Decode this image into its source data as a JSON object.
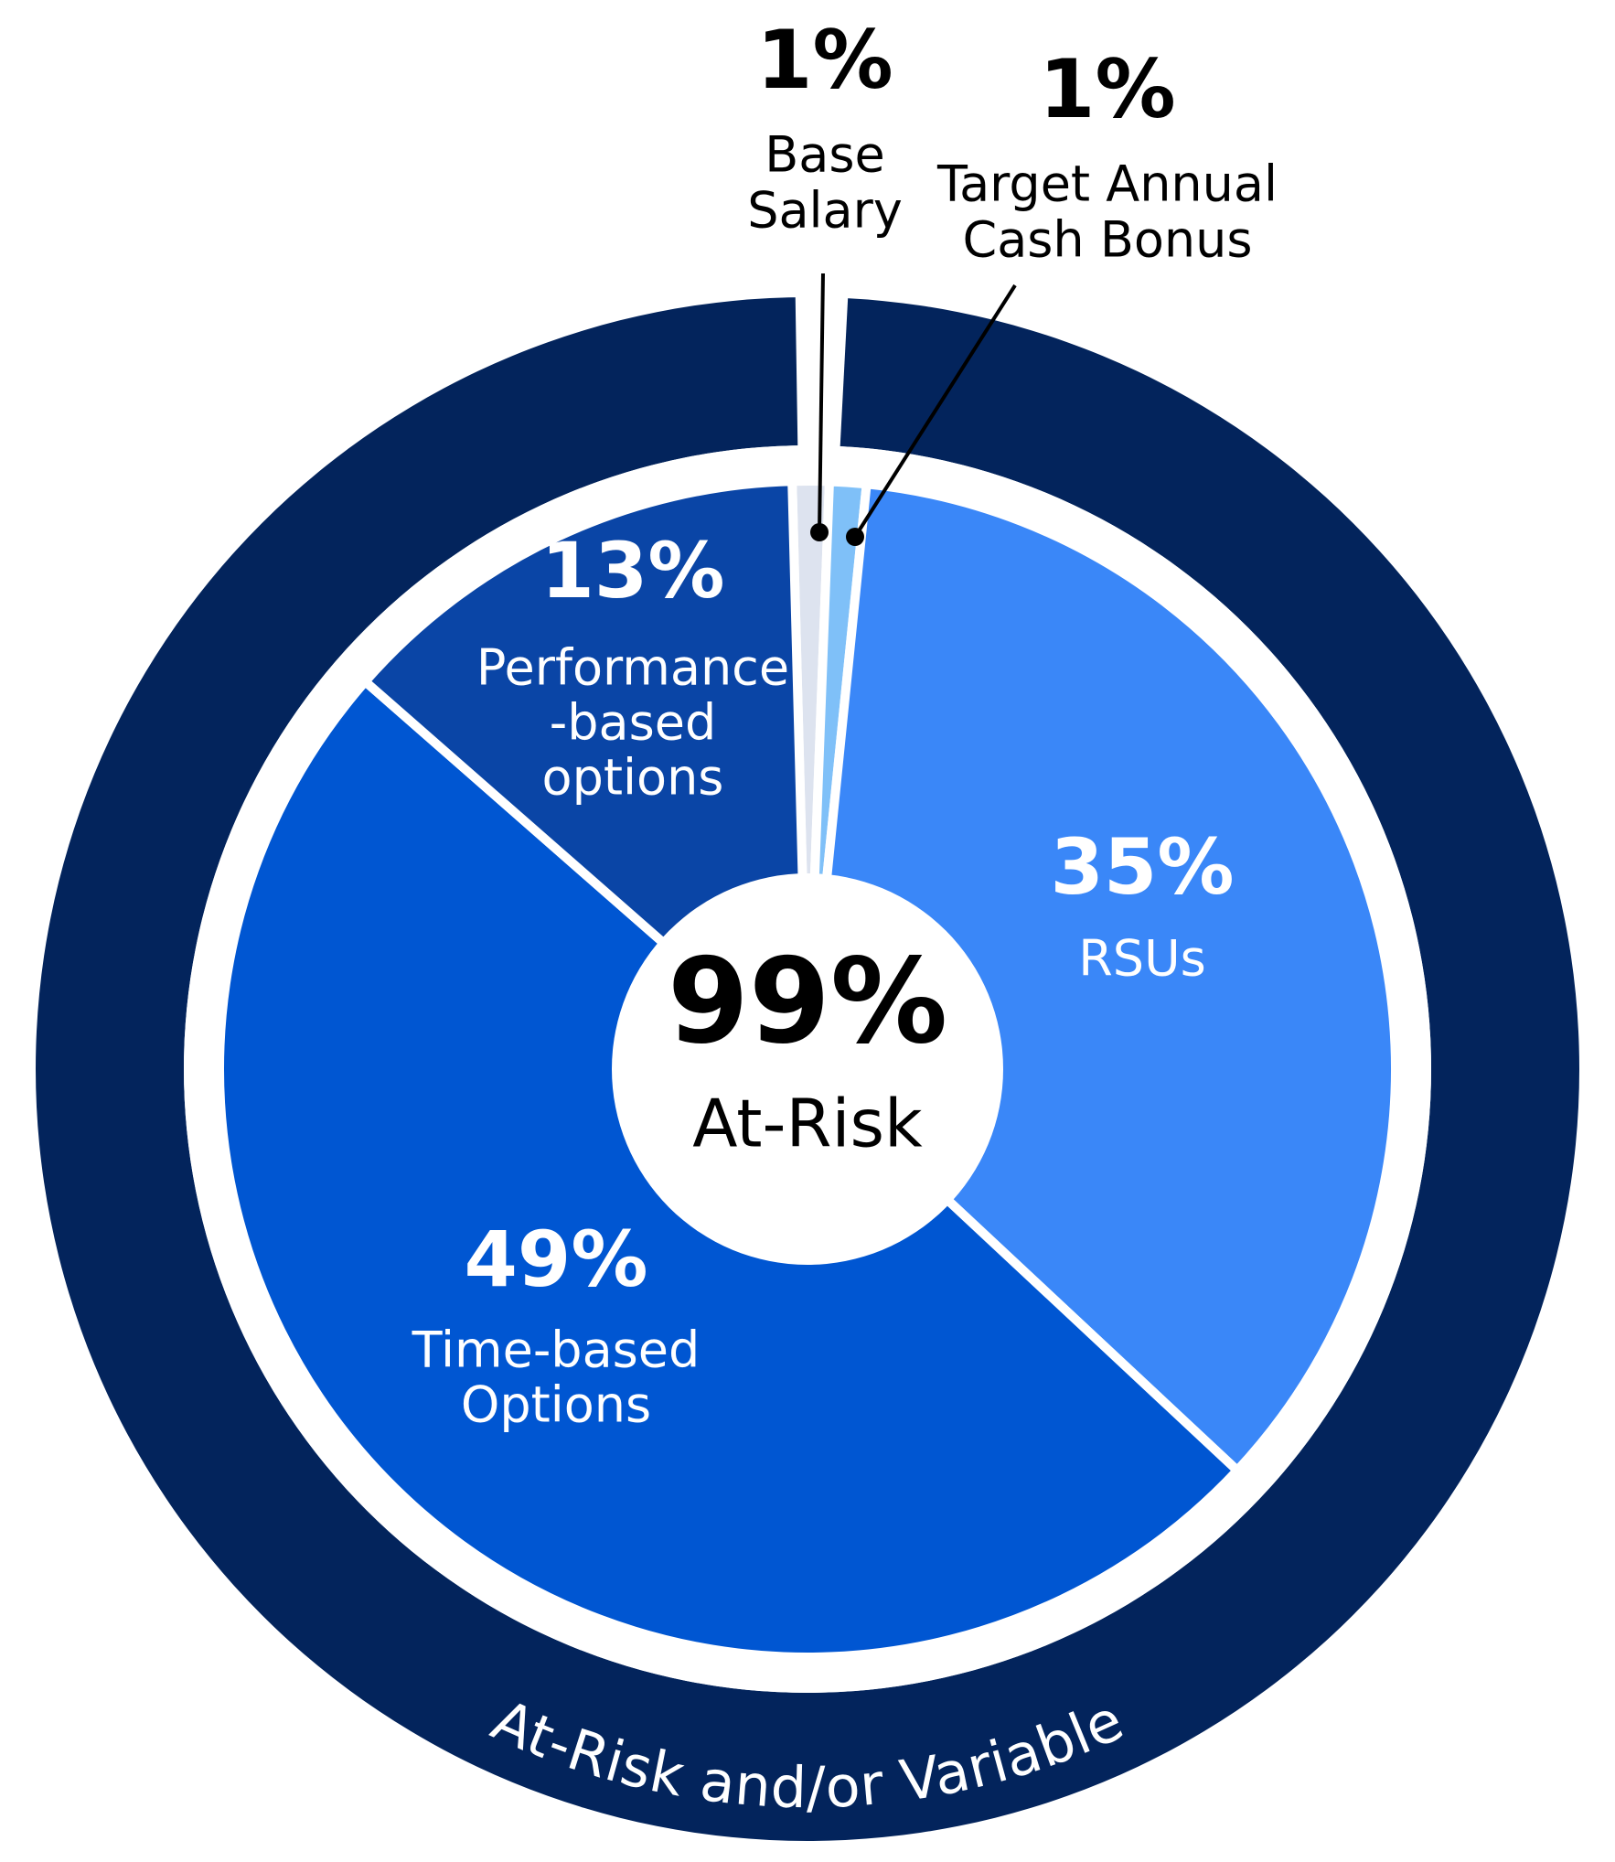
{
  "chart_data": {
    "type": "pie",
    "categories": [
      [
        "Base",
        "Salary"
      ],
      [
        "Target Annual",
        "Cash Bonus"
      ],
      [
        "RSUs"
      ],
      [
        "Time-based",
        "Options"
      ],
      [
        "Performance",
        "-based",
        "options"
      ]
    ],
    "values": [
      1,
      1,
      35,
      49,
      13
    ],
    "value_labels": [
      "1%",
      "1%",
      "35%",
      "49%",
      "13%"
    ],
    "colors": [
      "#dde3ef",
      "#7fc0f8",
      "#3a87f8",
      "#0056d2",
      "#0a45a6"
    ],
    "center": {
      "value": 99,
      "label": "99%",
      "text": "At-Risk"
    },
    "ring_label": "At-Risk and/or Variable",
    "ring_color": "#03245c"
  }
}
